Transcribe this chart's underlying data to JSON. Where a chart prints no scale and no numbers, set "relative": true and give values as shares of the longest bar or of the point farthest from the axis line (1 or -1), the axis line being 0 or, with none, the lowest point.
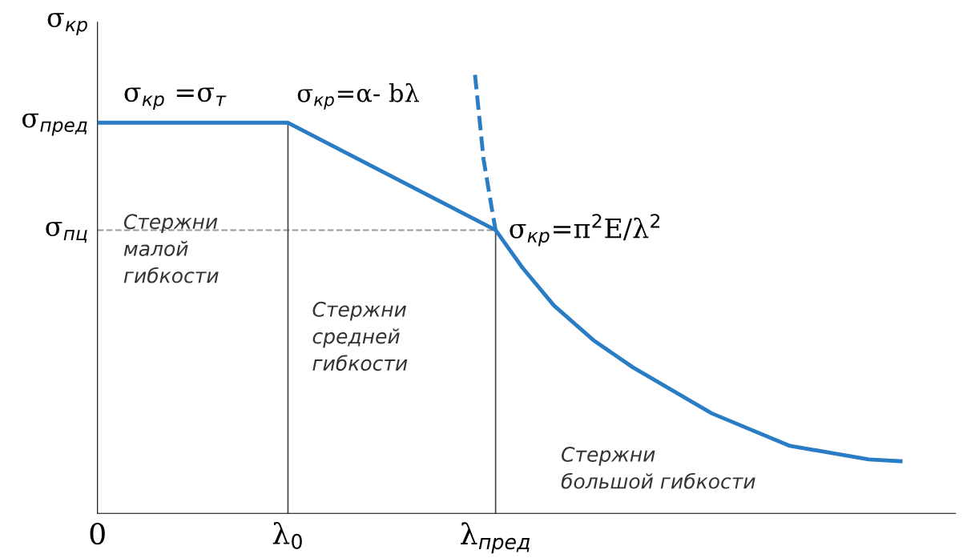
{
  "chart_data": {
    "type": "line",
    "relative": true,
    "ylabel": "σ$_{кр}$",
    "xlim": [
      0,
      1
    ],
    "xticks": [
      {
        "value": 0,
        "label": "0"
      },
      {
        "value": 0.222,
        "label": "λ$_{0}$"
      },
      {
        "value": 0.464,
        "label": "λ$_{пред}$"
      }
    ],
    "series": [
      {
        "color": "#2a7cc4",
        "line_style": "solid",
        "x": [
          0,
          0.222,
          0.464,
          0.495,
          0.532,
          0.578,
          0.624,
          0.716,
          0.807,
          0.899,
          0.936
        ],
        "values": [
          0.891,
          0.891,
          0.646,
          0.561,
          0.474,
          0.395,
          0.333,
          0.228,
          0.154,
          0.123,
          0.119
        ]
      },
      {
        "color": "#2a7cc4",
        "line_style": "dashed",
        "x": [
          0.44,
          0.45,
          0.459,
          0.464
        ],
        "values": [
          1.0,
          0.807,
          0.702,
          0.646
        ]
      }
    ],
    "ref_lines": [
      {
        "axis": "y",
        "value": 0.646,
        "label": "σ$_{пц}$",
        "color": "#999999",
        "line_style": "dashed"
      },
      {
        "axis": "x",
        "value": 0.222,
        "color": "#444444",
        "line_style": "solid"
      },
      {
        "axis": "x",
        "value": 0.464,
        "color": "#444444",
        "line_style": "solid"
      }
    ],
    "annotations": [
      {
        "text": "σ$_{пред}$",
        "x": 0,
        "y": 0.891
      },
      "σ$_{кр}$ =σ$_{т}$",
      {
        "text": "σ$_{кр}$=α- bλ",
        "x": 0.222,
        "y": 0.891
      },
      {
        "text": "σ$_{кр}$=π$^{2}$E/λ$^{2}$",
        "x": 0.464,
        "y": 0.646
      },
      "Стержни\nмалой\nгибкости",
      "Стержни\nсредней\nгибкости",
      "Стержни\nбольшой гибкости"
    ],
    "grid": false,
    "legend": false
  }
}
